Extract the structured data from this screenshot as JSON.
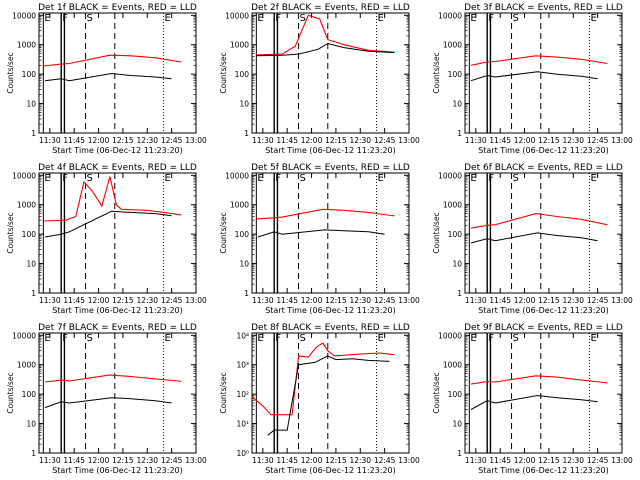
{
  "chart_data": [
    {
      "type": "line",
      "title": "Det 1f BLACK = Events, RED = LLD",
      "ylabel": "Counts/sec",
      "xlabel": "Start Time (06-Dec-12 11:23:20)",
      "xlim": [
        "11:23:20",
        "13:00"
      ],
      "ylim": [
        1,
        12000
      ],
      "yscale": "log",
      "x_ticks": [
        "11:30",
        "11:45",
        "12:00",
        "12:15",
        "12:30",
        "12:45",
        "13:00"
      ],
      "y_ticks": [
        "1",
        "10",
        "100",
        "1000",
        "10000"
      ],
      "markers": [
        {
          "label": "E",
          "time": "11:26"
        },
        {
          "label": "F",
          "time": "11:37"
        },
        {
          "label": "S",
          "time": "11:52"
        },
        {
          "label": "E",
          "time": "12:40"
        }
      ],
      "series": [
        {
          "color": "#ff0000",
          "points": [
            [
              "11:26",
              190
            ],
            [
              "11:37",
              220
            ],
            [
              "11:42",
              230
            ],
            [
              "12:07",
              440
            ],
            [
              "12:20",
              420
            ],
            [
              "12:35",
              360
            ],
            [
              "12:49",
              270
            ],
            [
              "12:51",
              260
            ]
          ]
        },
        {
          "color": "#000000",
          "points": [
            [
              "11:27",
              60
            ],
            [
              "11:37",
              70
            ],
            [
              "11:42",
              60
            ],
            [
              "12:08",
              105
            ],
            [
              "12:20",
              90
            ],
            [
              "12:35",
              80
            ],
            [
              "12:45",
              70
            ]
          ]
        }
      ]
    },
    {
      "type": "line",
      "title": "Det 2f BLACK = Events, RED = LLD",
      "ylabel": "Counts/sec",
      "xlabel": "Start Time (06-Dec-12 11:23:20)",
      "xlim": [
        "11:23:20",
        "13:00"
      ],
      "ylim": [
        1,
        12000
      ],
      "yscale": "log",
      "x_ticks": [
        "11:30",
        "11:45",
        "12:00",
        "12:15",
        "12:30",
        "12:45",
        "13:00"
      ],
      "y_ticks": [
        "1",
        "10",
        "100",
        "1000",
        "10000"
      ],
      "markers": [
        {
          "label": "E",
          "time": "11:26"
        },
        {
          "label": "F",
          "time": "11:37"
        },
        {
          "label": "S",
          "time": "11:52"
        },
        {
          "label": "E",
          "time": "12:40"
        }
      ],
      "series": [
        {
          "color": "#ff0000",
          "points": [
            [
              "11:26",
              450
            ],
            [
              "11:42",
              480
            ],
            [
              "11:50",
              900
            ],
            [
              "11:58",
              10000
            ],
            [
              "12:05",
              7500
            ],
            [
              "12:10",
              1500
            ],
            [
              "12:20",
              1000
            ],
            [
              "12:35",
              650
            ],
            [
              "12:51",
              560
            ]
          ]
        },
        {
          "color": "#000000",
          "points": [
            [
              "11:26",
              420
            ],
            [
              "11:42",
              440
            ],
            [
              "11:52",
              480
            ],
            [
              "12:04",
              700
            ],
            [
              "12:10",
              1100
            ],
            [
              "12:20",
              800
            ],
            [
              "12:35",
              600
            ],
            [
              "12:51",
              540
            ]
          ]
        }
      ]
    },
    {
      "type": "line",
      "title": "Det 3f BLACK = Events, RED = LLD",
      "ylabel": "Counts/sec",
      "xlabel": "Start Time (06-Dec-12 11:23:20)",
      "xlim": [
        "11:23:20",
        "13:00"
      ],
      "ylim": [
        1,
        12000
      ],
      "yscale": "log",
      "x_ticks": [
        "11:30",
        "11:45",
        "12:00",
        "12:15",
        "12:30",
        "12:45",
        "13:00"
      ],
      "y_ticks": [
        "1",
        "10",
        "100",
        "1000",
        "10000"
      ],
      "markers": [
        {
          "label": "E",
          "time": "11:26"
        },
        {
          "label": "F",
          "time": "11:37"
        },
        {
          "label": "S",
          "time": "11:52"
        },
        {
          "label": "E",
          "time": "12:40"
        }
      ],
      "series": [
        {
          "color": "#ff0000",
          "points": [
            [
              "11:27",
              200
            ],
            [
              "11:37",
              260
            ],
            [
              "11:42",
              270
            ],
            [
              "12:07",
              420
            ],
            [
              "12:20",
              380
            ],
            [
              "12:35",
              320
            ],
            [
              "12:49",
              240
            ],
            [
              "12:51",
              230
            ]
          ]
        },
        {
          "color": "#000000",
          "points": [
            [
              "11:27",
              60
            ],
            [
              "11:37",
              90
            ],
            [
              "11:42",
              80
            ],
            [
              "12:08",
              120
            ],
            [
              "12:20",
              100
            ],
            [
              "12:35",
              85
            ],
            [
              "12:45",
              70
            ]
          ]
        }
      ]
    },
    {
      "type": "line",
      "title": "Det 4f BLACK = Events, RED = LLD",
      "ylabel": "Counts/sec",
      "xlabel": "Start Time (06-Dec-12 11:23:20)",
      "xlim": [
        "11:23:20",
        "13:00"
      ],
      "ylim": [
        1,
        12000
      ],
      "yscale": "log",
      "x_ticks": [
        "11:30",
        "11:45",
        "12:00",
        "12:15",
        "12:30",
        "12:45",
        "13:00"
      ],
      "y_ticks": [
        "1",
        "10",
        "100",
        "1000",
        "10000"
      ],
      "markers": [
        {
          "label": "E",
          "time": "11:26"
        },
        {
          "label": "F",
          "time": "11:37"
        },
        {
          "label": "S",
          "time": "11:52"
        },
        {
          "label": "E",
          "time": "12:40"
        }
      ],
      "series": [
        {
          "color": "#ff0000",
          "points": [
            [
              "11:26",
              280
            ],
            [
              "11:40",
              300
            ],
            [
              "11:46",
              400
            ],
            [
              "11:51",
              6000
            ],
            [
              "11:56",
              3000
            ],
            [
              "12:02",
              900
            ],
            [
              "12:07",
              9000
            ],
            [
              "12:11",
              1000
            ],
            [
              "12:14",
              700
            ],
            [
              "12:30",
              650
            ],
            [
              "12:40",
              550
            ],
            [
              "12:51",
              450
            ]
          ]
        },
        {
          "color": "#000000",
          "points": [
            [
              "11:27",
              80
            ],
            [
              "11:37",
              100
            ],
            [
              "11:42",
              120
            ],
            [
              "12:08",
              600
            ],
            [
              "12:20",
              550
            ],
            [
              "12:35",
              500
            ],
            [
              "12:45",
              420
            ]
          ]
        }
      ]
    },
    {
      "type": "line",
      "title": "Det 5f BLACK = Events, RED = LLD",
      "ylabel": "Counts/sec",
      "xlabel": "Start Time (06-Dec-12 11:23:20)",
      "xlim": [
        "11:23:20",
        "13:00"
      ],
      "ylim": [
        1,
        12000
      ],
      "yscale": "log",
      "x_ticks": [
        "11:30",
        "11:45",
        "12:00",
        "12:15",
        "12:30",
        "12:45",
        "13:00"
      ],
      "y_ticks": [
        "1",
        "10",
        "100",
        "1000",
        "10000"
      ],
      "markers": [
        {
          "label": "E",
          "time": "11:26"
        },
        {
          "label": "F",
          "time": "11:37"
        },
        {
          "label": "S",
          "time": "11:52"
        },
        {
          "label": "E",
          "time": "12:40"
        }
      ],
      "series": [
        {
          "color": "#ff0000",
          "points": [
            [
              "11:26",
              330
            ],
            [
              "11:37",
              360
            ],
            [
              "11:42",
              380
            ],
            [
              "12:07",
              700
            ],
            [
              "12:20",
              650
            ],
            [
              "12:35",
              550
            ],
            [
              "12:49",
              430
            ],
            [
              "12:51",
              420
            ]
          ]
        },
        {
          "color": "#000000",
          "points": [
            [
              "11:27",
              80
            ],
            [
              "11:37",
              120
            ],
            [
              "11:42",
              100
            ],
            [
              "12:08",
              140
            ],
            [
              "12:20",
              130
            ],
            [
              "12:35",
              120
            ],
            [
              "12:45",
              100
            ]
          ]
        }
      ]
    },
    {
      "type": "line",
      "title": "Det 6f BLACK = Events, RED = LLD",
      "ylabel": "Counts/sec",
      "xlabel": "Start Time (06-Dec-12 11:23:20)",
      "xlim": [
        "11:23:20",
        "13:00"
      ],
      "ylim": [
        1,
        12000
      ],
      "yscale": "log",
      "x_ticks": [
        "11:30",
        "11:45",
        "12:00",
        "12:15",
        "12:30",
        "12:45",
        "13:00"
      ],
      "y_ticks": [
        "1",
        "10",
        "100",
        "1000",
        "10000"
      ],
      "markers": [
        {
          "label": "E",
          "time": "11:26"
        },
        {
          "label": "F",
          "time": "11:37"
        },
        {
          "label": "S",
          "time": "11:52"
        },
        {
          "label": "E",
          "time": "12:40"
        }
      ],
      "series": [
        {
          "color": "#ff0000",
          "points": [
            [
              "11:27",
              160
            ],
            [
              "11:37",
              200
            ],
            [
              "11:42",
              210
            ],
            [
              "12:07",
              500
            ],
            [
              "12:20",
              400
            ],
            [
              "12:35",
              320
            ],
            [
              "12:49",
              220
            ],
            [
              "12:51",
              210
            ]
          ]
        },
        {
          "color": "#000000",
          "points": [
            [
              "11:27",
              50
            ],
            [
              "11:37",
              70
            ],
            [
              "11:42",
              60
            ],
            [
              "12:08",
              110
            ],
            [
              "12:20",
              90
            ],
            [
              "12:35",
              75
            ],
            [
              "12:45",
              60
            ]
          ]
        }
      ]
    },
    {
      "type": "line",
      "title": "Det 7f BLACK = Events, RED = LLD",
      "ylabel": "Counts/sec",
      "xlabel": "Start Time (06-Dec-12 11:23:20)",
      "xlim": [
        "11:23:20",
        "13:00"
      ],
      "ylim": [
        1,
        12000
      ],
      "yscale": "log",
      "x_ticks": [
        "11:30",
        "11:45",
        "12:00",
        "12:15",
        "12:30",
        "12:45",
        "13:00"
      ],
      "y_ticks": [
        "1",
        "10",
        "100",
        "1000",
        "10000"
      ],
      "markers": [
        {
          "label": "E",
          "time": "11:26"
        },
        {
          "label": "F",
          "time": "11:37"
        },
        {
          "label": "S",
          "time": "11:52"
        },
        {
          "label": "E",
          "time": "12:40"
        }
      ],
      "series": [
        {
          "color": "#ff0000",
          "points": [
            [
              "11:27",
              260
            ],
            [
              "11:37",
              300
            ],
            [
              "11:42",
              280
            ],
            [
              "12:07",
              450
            ],
            [
              "12:20",
              400
            ],
            [
              "12:35",
              330
            ],
            [
              "12:49",
              280
            ],
            [
              "12:51",
              270
            ]
          ]
        },
        {
          "color": "#000000",
          "points": [
            [
              "11:27",
              35
            ],
            [
              "11:37",
              55
            ],
            [
              "11:42",
              50
            ],
            [
              "12:08",
              75
            ],
            [
              "12:20",
              70
            ],
            [
              "12:35",
              60
            ],
            [
              "12:45",
              50
            ]
          ]
        }
      ]
    },
    {
      "type": "line",
      "title": "Det 8f BLACK = Events, RED = LLD",
      "ylabel": "Counts/sec",
      "xlabel": "Start Time (06-Dec-12 11:23:20)",
      "xlim": [
        "11:23:20",
        "13:00"
      ],
      "ylim": [
        1,
        12000
      ],
      "yscale": "log",
      "x_ticks": [
        "11:30",
        "11:45",
        "12:00",
        "12:15",
        "12:30",
        "12:45",
        "13:00"
      ],
      "y_ticks": [
        "10⁰",
        "10¹",
        "10²",
        "10³",
        "10⁴"
      ],
      "markers": [
        {
          "label": "E",
          "time": "11:26"
        },
        {
          "label": "F",
          "time": "11:37"
        },
        {
          "label": "S",
          "time": "11:52"
        },
        {
          "label": "E",
          "time": "12:40"
        }
      ],
      "series": [
        {
          "color": "#ff0000",
          "points": [
            [
              "11:23:20",
              80
            ],
            [
              "11:30",
              40
            ],
            [
              "11:35",
              20
            ],
            [
              "11:45",
              20
            ],
            [
              "11:48",
              20
            ],
            [
              "11:52",
              2000
            ],
            [
              "11:58",
              1800
            ],
            [
              "12:03",
              4000
            ],
            [
              "12:07",
              5500
            ],
            [
              "12:10",
              3000
            ],
            [
              "12:14",
              2000
            ],
            [
              "12:30",
              2300
            ],
            [
              "12:42",
              2500
            ],
            [
              "12:51",
              2200
            ]
          ]
        },
        {
          "color": "#000000",
          "points": [
            [
              "11:33",
              4
            ],
            [
              "11:37",
              6
            ],
            [
              "11:45",
              6
            ],
            [
              "11:52",
              1000
            ],
            [
              "12:02",
              1200
            ],
            [
              "12:10",
              2000
            ],
            [
              "12:15",
              1500
            ],
            [
              "12:25",
              1600
            ],
            [
              "12:35",
              1400
            ],
            [
              "12:48",
              1300
            ]
          ]
        }
      ]
    },
    {
      "type": "line",
      "title": "Det 9f BLACK = Events, RED = LLD",
      "ylabel": "Counts/sec",
      "xlabel": "Start Time (06-Dec-12 11:23:20)",
      "xlim": [
        "11:23:20",
        "13:00"
      ],
      "ylim": [
        1,
        12000
      ],
      "yscale": "log",
      "x_ticks": [
        "11:30",
        "11:45",
        "12:00",
        "12:15",
        "12:30",
        "12:45",
        "13:00"
      ],
      "y_ticks": [
        "1",
        "10",
        "100",
        "1000",
        "10000"
      ],
      "markers": [
        {
          "label": "E",
          "time": "11:26"
        },
        {
          "label": "F",
          "time": "11:37"
        },
        {
          "label": "S",
          "time": "11:52"
        },
        {
          "label": "E",
          "time": "12:40"
        }
      ],
      "series": [
        {
          "color": "#ff0000",
          "points": [
            [
              "11:27",
              220
            ],
            [
              "11:37",
              270
            ],
            [
              "11:42",
              260
            ],
            [
              "12:07",
              420
            ],
            [
              "12:20",
              380
            ],
            [
              "12:35",
              300
            ],
            [
              "12:49",
              250
            ],
            [
              "12:51",
              240
            ]
          ]
        },
        {
          "color": "#000000",
          "points": [
            [
              "11:27",
              30
            ],
            [
              "11:37",
              60
            ],
            [
              "11:42",
              50
            ],
            [
              "12:08",
              90
            ],
            [
              "12:20",
              75
            ],
            [
              "12:35",
              65
            ],
            [
              "12:45",
              55
            ]
          ]
        }
      ]
    }
  ]
}
